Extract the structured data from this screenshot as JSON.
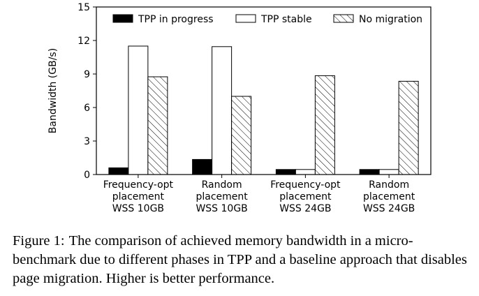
{
  "chart_data": {
    "type": "bar",
    "ylabel": "Bandwidth (GB/s)",
    "ylim": [
      0,
      15
    ],
    "yticks": [
      0,
      3,
      6,
      9,
      12,
      15
    ],
    "grid": false,
    "legend_position": "top",
    "categories": [
      [
        "Frequency-opt",
        "placement",
        "WSS 10GB"
      ],
      [
        "Random",
        "placement",
        "WSS 10GB"
      ],
      [
        "Frequency-opt",
        "placement",
        "WSS 24GB"
      ],
      [
        "Random",
        "placement",
        "WSS 24GB"
      ]
    ],
    "series": [
      {
        "name": "TPP in progress",
        "style": "solid-black",
        "values": [
          0.6,
          1.35,
          0.45,
          0.45
        ]
      },
      {
        "name": "TPP stable",
        "style": "white",
        "values": [
          11.5,
          11.45,
          0.45,
          0.45
        ]
      },
      {
        "name": "No migration",
        "style": "hatched",
        "values": [
          8.75,
          7.0,
          8.85,
          8.35
        ]
      }
    ]
  },
  "caption": {
    "label": "Figure 1:",
    "text": "The comparison of achieved memory bandwidth in a micro-benchmark due to different phases in TPP and a baseline approach that disables page migration. Higher is better performance."
  }
}
